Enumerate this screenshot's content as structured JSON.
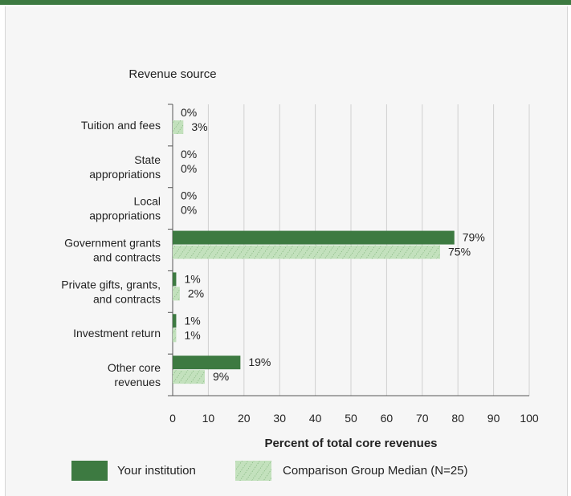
{
  "chart_data": {
    "type": "bar",
    "orientation": "horizontal",
    "category_axis_title": "Revenue source",
    "categories": [
      [
        "Tuition and fees"
      ],
      [
        "State",
        "appropriations"
      ],
      [
        "Local",
        "appropriations"
      ],
      [
        "Government grants",
        "and contracts"
      ],
      [
        "Private gifts, grants,",
        "and contracts"
      ],
      [
        "Investment return"
      ],
      [
        "Other core",
        "revenues"
      ]
    ],
    "series": [
      {
        "name": "Your institution",
        "color": "#3d7a41",
        "pattern": "solid",
        "values": [
          0,
          0,
          0,
          79,
          1,
          1,
          19
        ],
        "labels": [
          "0%",
          "0%",
          "0%",
          "79%",
          "1%",
          "1%",
          "19%"
        ]
      },
      {
        "name": "Comparison Group Median (N=25)",
        "color": "#c3e1bd",
        "pattern": "hatched",
        "values": [
          3,
          0,
          0,
          75,
          2,
          1,
          9
        ],
        "labels": [
          "3%",
          "0%",
          "0%",
          "75%",
          "2%",
          "1%",
          "9%"
        ]
      }
    ],
    "xlabel": "Percent of total core revenues",
    "xlim": [
      0,
      100
    ],
    "xticks": [
      0,
      10,
      20,
      30,
      40,
      50,
      60,
      70,
      80,
      90,
      100
    ],
    "grid": true,
    "legend_position": "bottom"
  }
}
